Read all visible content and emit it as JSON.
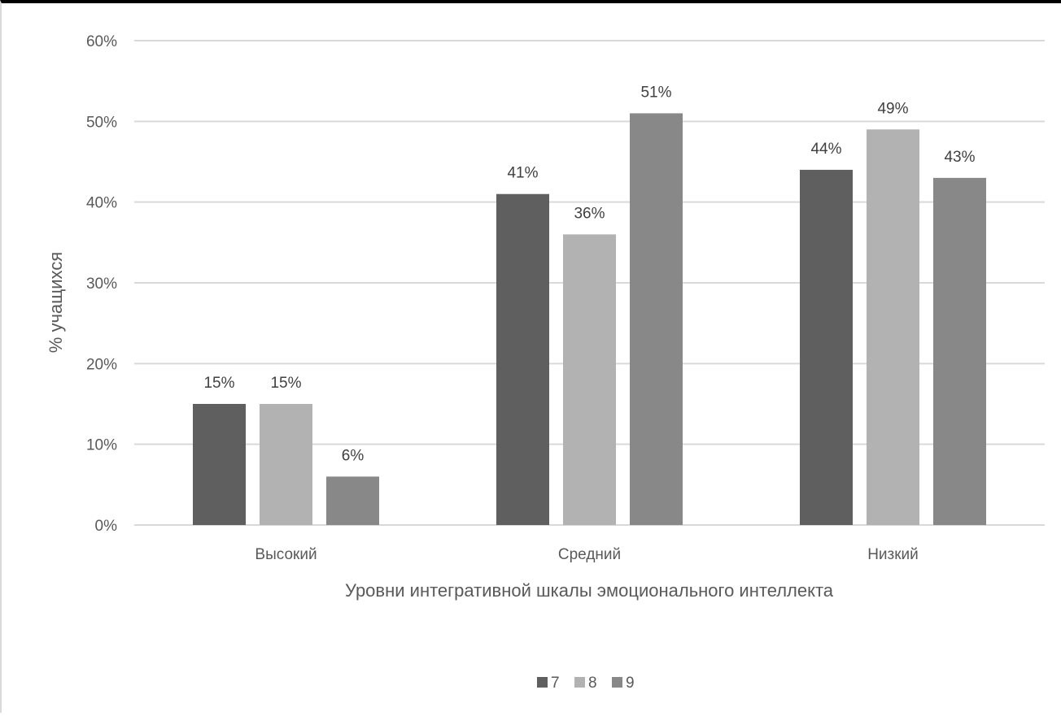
{
  "chart_data": {
    "type": "bar",
    "xlabel": "Уровни интегративной шкалы эмоционального интеллекта",
    "ylabel": "% учащихся",
    "ylim": [
      0,
      60
    ],
    "y_ticks": [
      "0%",
      "10%",
      "20%",
      "30%",
      "40%",
      "50%",
      "60%"
    ],
    "categories": [
      "Высокий",
      "Средний",
      "Низкий"
    ],
    "series": [
      {
        "name": "7",
        "color": "#5f5f5f",
        "values": [
          15,
          41,
          44
        ],
        "labels": [
          "15%",
          "41%",
          "44%"
        ]
      },
      {
        "name": "8",
        "color": "#b2b2b2",
        "values": [
          15,
          36,
          49
        ],
        "labels": [
          "15%",
          "36%",
          "49%"
        ]
      },
      {
        "name": "9",
        "color": "#888888",
        "values": [
          6,
          51,
          43
        ],
        "labels": [
          "6%",
          "51%",
          "43%"
        ]
      }
    ],
    "grid": true,
    "legend_position": "bottom-center",
    "colors": {
      "grid": "#d9d9d9",
      "text": "#595959"
    }
  }
}
